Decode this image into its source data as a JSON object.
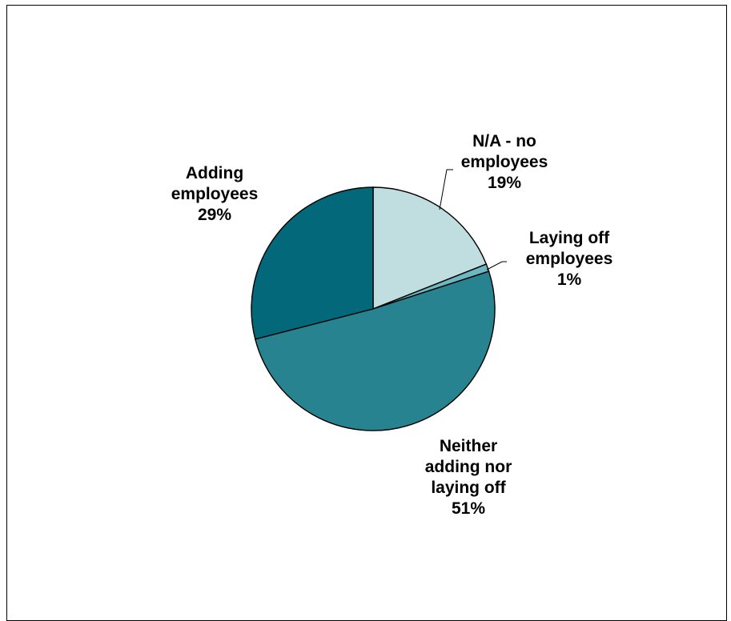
{
  "chart_data": {
    "type": "pie",
    "title": "",
    "slices": [
      {
        "label_lines": [
          "N/A - no",
          "employees"
        ],
        "percent_label": "19%",
        "value": 19,
        "color": "#C0DDE0"
      },
      {
        "label_lines": [
          "Laying off",
          "employees"
        ],
        "percent_label": "1%",
        "value": 1,
        "color": "#6EB6C1"
      },
      {
        "label_lines": [
          "Neither",
          "adding nor",
          "laying off"
        ],
        "percent_label": "51%",
        "value": 51,
        "color": "#288390"
      },
      {
        "label_lines": [
          "Adding",
          "employees"
        ],
        "percent_label": "29%",
        "value": 29,
        "color": "#02687A"
      }
    ],
    "start_angle_deg": 0,
    "direction": "clockwise",
    "legend": "none",
    "data_labels": "outside with leader lines for small slices"
  }
}
